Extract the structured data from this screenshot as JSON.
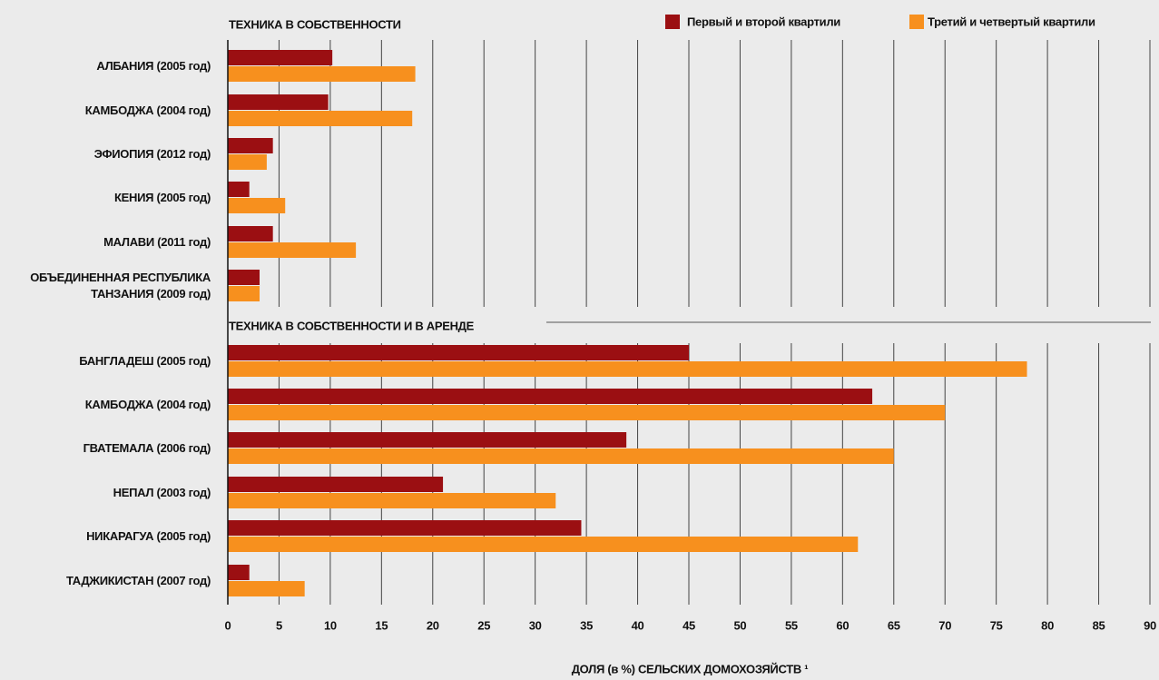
{
  "chart_data": [
    {
      "type": "bar",
      "orientation": "horizontal",
      "title": "ТЕХНИКА В СОБСТВЕННОСТИ",
      "categories": [
        "АЛБАНИЯ (2005 год)",
        "КАМБОДЖА (2004 год)",
        "ЭФИОПИЯ (2012 год)",
        "КЕНИЯ (2005 год)",
        "МАЛАВИ (2011 год)",
        "ОБЪЕДИНЕННАЯ РЕСПУБЛИКА ТАНЗАНИЯ (2009 год)"
      ],
      "series": [
        {
          "name": "Первый и второй квартили",
          "color": "#9b0f12",
          "values": [
            10.2,
            9.8,
            4.4,
            2.1,
            4.4,
            3.1
          ]
        },
        {
          "name": "Третий и четвертый квартили",
          "color": "#f7901e",
          "values": [
            18.3,
            18,
            3.8,
            5.6,
            12.5,
            3.1
          ]
        }
      ],
      "xlim": [
        0,
        90
      ]
    },
    {
      "type": "bar",
      "orientation": "horizontal",
      "title": "ТЕХНИКА В СОБСТВЕННОСТИ И В АРЕНДЕ",
      "categories": [
        "БАНГЛАДЕШ (2005 год)",
        "КАМБОДЖА (2004 год)",
        "ГВАТЕМАЛА (2006 год)",
        "НЕПАЛ (2003 год)",
        "НИКАРАГУА (2005 год)",
        "ТАДЖИКИСТАН (2007 год)"
      ],
      "series": [
        {
          "color": "#9b0f12",
          "values": [
            45,
            62.9,
            38.9,
            21,
            34.5,
            2.1
          ]
        },
        {
          "color": "#f7901e",
          "values": [
            78,
            70,
            65,
            32,
            61.5,
            7.5
          ]
        }
      ],
      "xlim": [
        0,
        90
      ],
      "xticks": [
        0,
        5,
        10,
        15,
        20,
        25,
        30,
        35,
        40,
        45,
        50,
        55,
        60,
        65,
        70,
        75,
        80,
        85,
        90
      ],
      "xlabel": "ДОЛЯ (в %) СЕЛЬСКИХ ДОМОХОЗЯЙСТВ ¹",
      "grid": true
    }
  ]
}
